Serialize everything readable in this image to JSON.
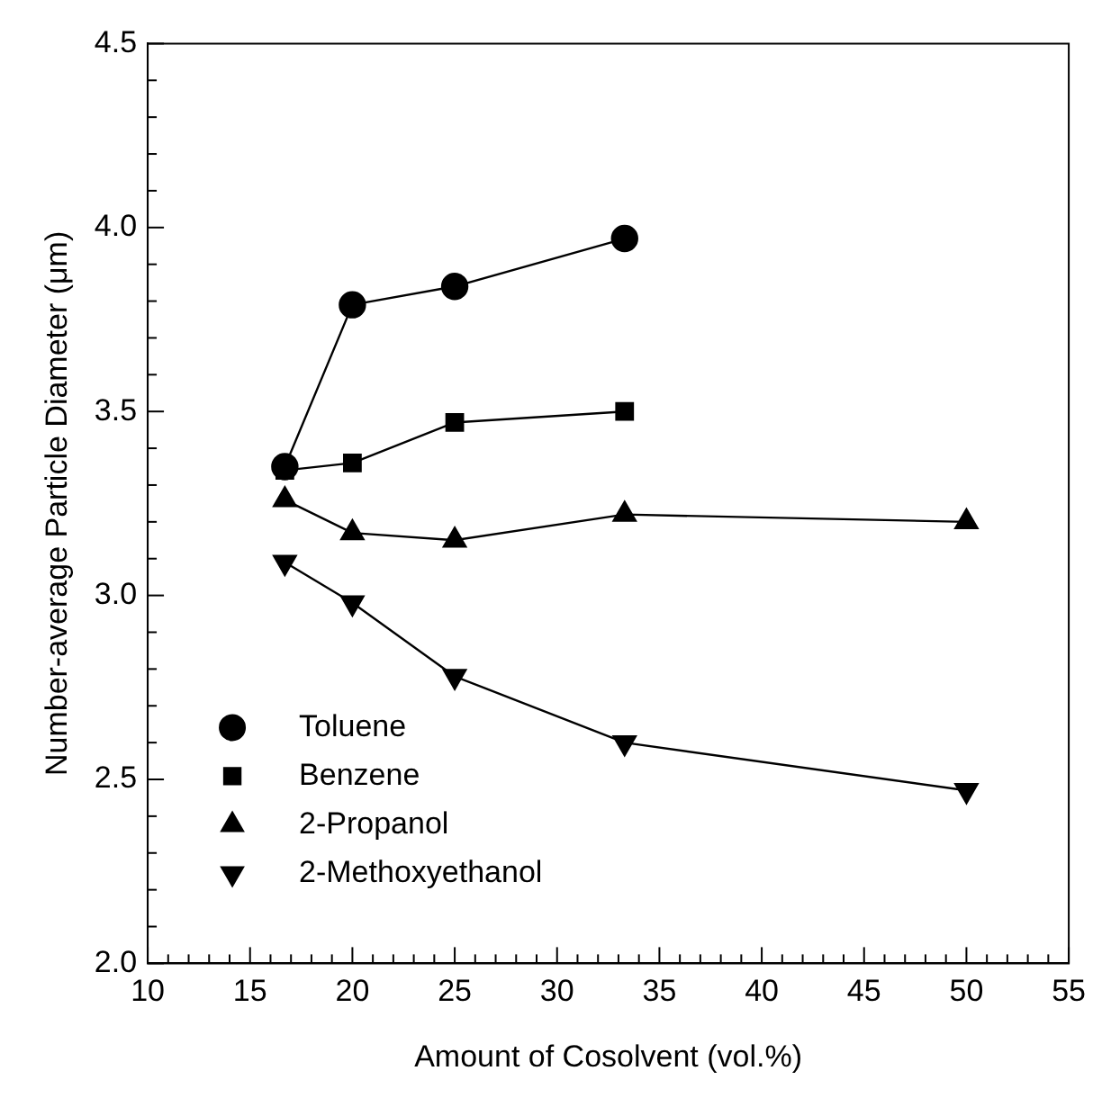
{
  "chart_data": {
    "type": "line",
    "xlabel": "Amount of Cosolvent (vol.%)",
    "ylabel": "Number-average Particle Diameter (μm)",
    "xlim": [
      10,
      55
    ],
    "ylim": [
      2.0,
      4.5
    ],
    "xticks": [
      10,
      {
        "value": 11,
        "label": null
      },
      {
        "value": 12,
        "label": null
      },
      {
        "value": 13,
        "label": null
      },
      {
        "value": 14,
        "label": null
      },
      15,
      {
        "value": 16,
        "label": null
      },
      {
        "value": 17,
        "label": null
      },
      {
        "value": 18,
        "label": null
      },
      {
        "value": 19,
        "label": null
      },
      20,
      {
        "value": 21,
        "label": null
      },
      {
        "value": 22,
        "label": null
      },
      {
        "value": 23,
        "label": null
      },
      {
        "value": 24,
        "label": null
      },
      25,
      {
        "value": 26,
        "label": null
      },
      {
        "value": 27,
        "label": null
      },
      {
        "value": 28,
        "label": null
      },
      {
        "value": 29,
        "label": null
      },
      30,
      {
        "value": 31,
        "label": null
      },
      {
        "value": 32,
        "label": null
      },
      {
        "value": 33,
        "label": null
      },
      {
        "value": 34,
        "label": null
      },
      35,
      {
        "value": 36,
        "label": null
      },
      {
        "value": 37,
        "label": null
      },
      {
        "value": 38,
        "label": null
      },
      {
        "value": 39,
        "label": null
      },
      40,
      {
        "value": 41,
        "label": null
      },
      {
        "value": 42,
        "label": null
      },
      {
        "value": 43,
        "label": null
      },
      {
        "value": 44,
        "label": null
      },
      45,
      {
        "value": 46,
        "label": null
      },
      {
        "value": 47,
        "label": null
      },
      {
        "value": 48,
        "label": null
      },
      {
        "value": 49,
        "label": null
      },
      50,
      {
        "value": 51,
        "label": null
      },
      {
        "value": 52,
        "label": null
      },
      {
        "value": 53,
        "label": null
      },
      {
        "value": 54,
        "label": null
      },
      55
    ],
    "yticks": [
      {
        "value": 2.0,
        "label": "2.0"
      },
      {
        "value": 2.1,
        "label": null
      },
      {
        "value": 2.2,
        "label": null
      },
      {
        "value": 2.3,
        "label": null
      },
      {
        "value": 2.4,
        "label": null
      },
      {
        "value": 2.5,
        "label": "2.5"
      },
      {
        "value": 2.6,
        "label": null
      },
      {
        "value": 2.7,
        "label": null
      },
      {
        "value": 2.8,
        "label": null
      },
      {
        "value": 2.9,
        "label": null
      },
      {
        "value": 3.0,
        "label": "3.0"
      },
      {
        "value": 3.1,
        "label": null
      },
      {
        "value": 3.2,
        "label": null
      },
      {
        "value": 3.3,
        "label": null
      },
      {
        "value": 3.4,
        "label": null
      },
      {
        "value": 3.5,
        "label": "3.5"
      },
      {
        "value": 3.6,
        "label": null
      },
      {
        "value": 3.7,
        "label": null
      },
      {
        "value": 3.8,
        "label": null
      },
      {
        "value": 3.9,
        "label": null
      },
      {
        "value": 4.0,
        "label": "4.0"
      },
      {
        "value": 4.1,
        "label": null
      },
      {
        "value": 4.2,
        "label": null
      },
      {
        "value": 4.3,
        "label": null
      },
      {
        "value": 4.4,
        "label": null
      },
      {
        "value": 4.5,
        "label": "4.5"
      }
    ],
    "grid": false,
    "legend": "bottom left",
    "line_style": "solid",
    "series": [
      {
        "name": "Toluene",
        "color": "#000000",
        "marker": "circle",
        "x": [
          16.7,
          20,
          25,
          33.3
        ],
        "values": [
          3.35,
          3.79,
          3.84,
          3.97
        ]
      },
      {
        "name": "Benzene",
        "color": "#000000",
        "marker": "square",
        "x": [
          16.7,
          20,
          25,
          33.3
        ],
        "values": [
          3.34,
          3.36,
          3.47,
          3.5
        ]
      },
      {
        "name": "2-Propanol",
        "color": "#000000",
        "marker": "triangle",
        "x": [
          16.7,
          20,
          25,
          33.3,
          50
        ],
        "values": [
          3.26,
          3.17,
          3.15,
          3.22,
          3.2
        ]
      },
      {
        "name": "2-Methoxyethanol",
        "color": "#000000",
        "marker": "triangle-down",
        "x": [
          16.7,
          20,
          25,
          33.3,
          50
        ],
        "values": [
          3.09,
          2.98,
          2.78,
          2.6,
          2.47
        ]
      }
    ]
  }
}
